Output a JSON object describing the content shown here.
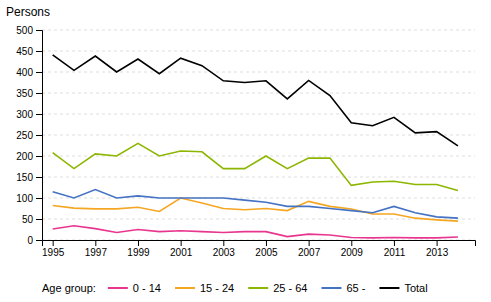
{
  "chart_data": {
    "type": "line",
    "y_label": "Persons",
    "legend_title": "Age group:",
    "x": [
      1995,
      1996,
      1997,
      1998,
      1999,
      2000,
      2001,
      2002,
      2003,
      2004,
      2005,
      2006,
      2007,
      2008,
      2009,
      2010,
      2011,
      2012,
      2013,
      2014
    ],
    "series": [
      {
        "name": "0 - 14",
        "color": "#e8368f",
        "values": [
          26,
          34,
          27,
          18,
          25,
          20,
          22,
          20,
          18,
          20,
          20,
          8,
          14,
          12,
          6,
          5,
          6,
          5,
          5,
          7
        ]
      },
      {
        "name": "15 - 24",
        "color": "#f5a623",
        "values": [
          82,
          76,
          74,
          74,
          78,
          68,
          100,
          88,
          75,
          72,
          75,
          70,
          92,
          80,
          74,
          62,
          62,
          52,
          48,
          45
        ]
      },
      {
        "name": "25 - 64",
        "color": "#8db600",
        "values": [
          208,
          170,
          205,
          200,
          230,
          200,
          212,
          210,
          170,
          170,
          200,
          170,
          195,
          195,
          130,
          138,
          140,
          132,
          132,
          118
        ]
      },
      {
        "name": "65 -",
        "color": "#4472c4",
        "values": [
          115,
          100,
          120,
          100,
          105,
          100,
          100,
          100,
          100,
          95,
          90,
          80,
          80,
          75,
          70,
          65,
          80,
          65,
          55,
          52
        ]
      },
      {
        "name": "Total",
        "color": "#000000",
        "values": [
          441,
          404,
          438,
          400,
          431,
          396,
          433,
          415,
          379,
          375,
          379,
          336,
          380,
          344,
          279,
          272,
          292,
          255,
          258,
          224
        ]
      }
    ],
    "xlim": [
      1994.5,
      2014.8
    ],
    "xticks": [
      1995,
      1997,
      1999,
      2001,
      2003,
      2005,
      2007,
      2009,
      2011,
      2013
    ],
    "ylim": [
      0,
      500
    ],
    "yticks": [
      0,
      50,
      100,
      150,
      200,
      250,
      300,
      350,
      400,
      450,
      500
    ],
    "grid": true,
    "legend": "bottom"
  }
}
